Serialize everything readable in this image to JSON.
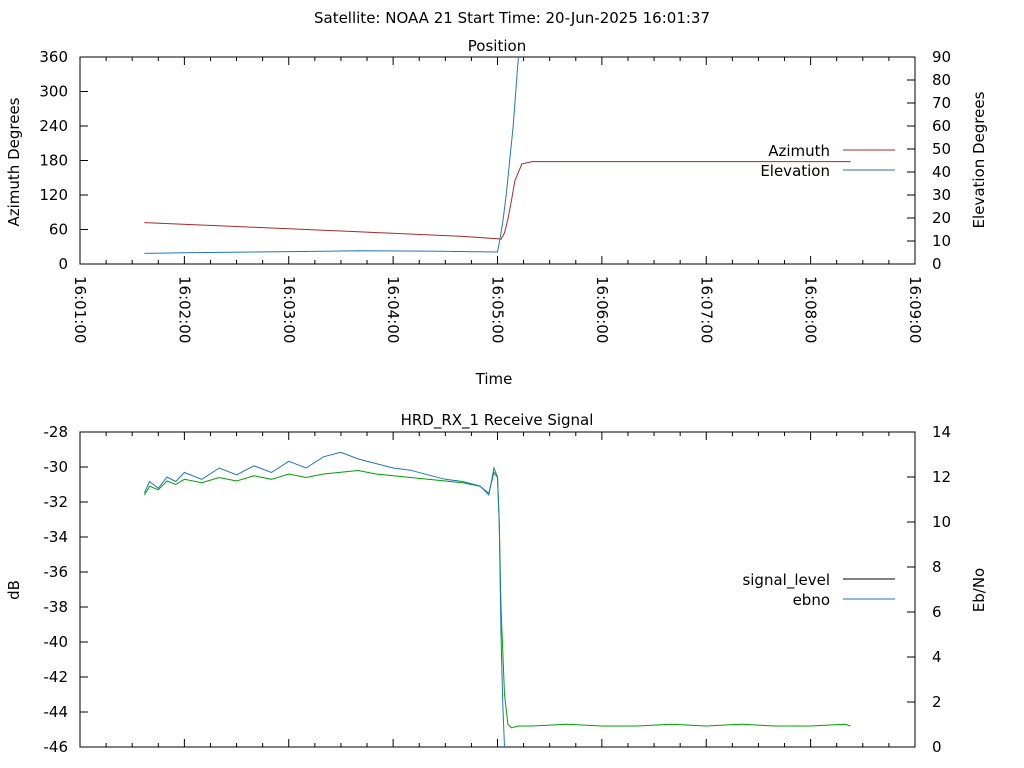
{
  "header": {
    "title": "Satellite: NOAA 21    Start Time: 20-Jun-2025 16:01:37"
  },
  "chart_data": [
    {
      "type": "line",
      "title": "Position",
      "xlabel": "Time",
      "ylabel": "Azimuth Degrees",
      "y2label": "Elevation Degrees",
      "xlim": [
        0,
        480
      ],
      "ylim": [
        0,
        360
      ],
      "y2lim": [
        0,
        90
      ],
      "xticks": [
        0,
        60,
        120,
        180,
        240,
        300,
        360,
        420,
        480
      ],
      "xtick_labels": [
        "16:01:00",
        "16:02:00",
        "16:03:00",
        "16:04:00",
        "16:05:00",
        "16:06:00",
        "16:07:00",
        "16:08:00",
        "16:09:00"
      ],
      "yticks": [
        0,
        60,
        120,
        180,
        240,
        300,
        360
      ],
      "ytick_labels": [
        "0",
        "60",
        "120",
        "180",
        "240",
        "300",
        "360"
      ],
      "y2ticks": [
        0,
        10,
        20,
        30,
        40,
        50,
        60,
        70,
        80,
        90
      ],
      "y2tick_labels": [
        "0",
        "10",
        "20",
        "30",
        "40",
        "50",
        "60",
        "70",
        "80",
        "90"
      ],
      "legend_position": "right",
      "series": [
        {
          "name": "Azimuth",
          "axis": "y",
          "color": "#a52a2a",
          "x": [
            37,
            100,
            160,
            220,
            240,
            242,
            244,
            246,
            248,
            250,
            254,
            260,
            300,
            360,
            420,
            443
          ],
          "y": [
            72,
            64,
            56,
            48,
            44,
            43,
            54,
            78,
            110,
            145,
            174,
            178,
            178,
            178,
            178,
            178
          ]
        },
        {
          "name": "Elevation",
          "axis": "y2",
          "color": "#1f77b4",
          "x": [
            37,
            60,
            100,
            140,
            160,
            200,
            240,
            241,
            243,
            245,
            247,
            249,
            250,
            252
          ],
          "y": [
            4.6,
            4.9,
            5.2,
            5.5,
            5.8,
            5.6,
            5.2,
            9,
            18,
            30,
            45,
            60,
            70,
            90
          ]
        }
      ]
    },
    {
      "type": "line",
      "title": "HRD_RX_1 Receive Signal",
      "xlabel": "",
      "ylabel": "dB",
      "y2label": "Eb/No",
      "xlim": [
        0,
        480
      ],
      "ylim": [
        -46,
        -28
      ],
      "y2lim": [
        0,
        14
      ],
      "yticks": [
        -46,
        -44,
        -42,
        -40,
        -38,
        -36,
        -34,
        -32,
        -30,
        -28
      ],
      "ytick_labels": [
        "-46",
        "-44",
        "-42",
        "-40",
        "-38",
        "-36",
        "-34",
        "-32",
        "-30",
        "-28"
      ],
      "y2ticks": [
        0,
        2,
        4,
        6,
        8,
        10,
        12,
        14
      ],
      "y2tick_labels": [
        "0",
        "2",
        "4",
        "6",
        "8",
        "10",
        "12",
        "14"
      ],
      "legend_position": "right",
      "series": [
        {
          "name": "signal_level",
          "axis": "y",
          "color": "#00a000",
          "x": [
            37,
            40,
            45,
            50,
            55,
            60,
            70,
            80,
            90,
            100,
            110,
            120,
            130,
            140,
            150,
            160,
            170,
            180,
            190,
            200,
            210,
            220,
            230,
            235,
            238,
            240,
            241,
            242,
            244,
            246,
            248,
            252,
            260,
            280,
            300,
            320,
            340,
            360,
            380,
            400,
            420,
            440,
            443
          ],
          "y": [
            -31.6,
            -31.1,
            -31.3,
            -30.8,
            -31.0,
            -30.7,
            -30.9,
            -30.6,
            -30.8,
            -30.5,
            -30.7,
            -30.4,
            -30.6,
            -30.4,
            -30.3,
            -30.2,
            -30.4,
            -30.5,
            -30.6,
            -30.7,
            -30.8,
            -30.9,
            -31.1,
            -31.5,
            -30.3,
            -30.6,
            -33,
            -38,
            -43,
            -44.7,
            -44.9,
            -44.8,
            -44.8,
            -44.7,
            -44.8,
            -44.8,
            -44.7,
            -44.8,
            -44.7,
            -44.8,
            -44.8,
            -44.7,
            -44.8
          ]
        },
        {
          "name": "ebno",
          "axis": "y2",
          "color": "#1f77b4",
          "x": [
            37,
            40,
            45,
            50,
            55,
            60,
            70,
            80,
            90,
            100,
            110,
            120,
            130,
            140,
            150,
            160,
            170,
            180,
            190,
            200,
            210,
            220,
            230,
            235,
            238,
            240,
            241,
            242,
            243,
            244
          ],
          "y": [
            11.3,
            11.8,
            11.5,
            12.0,
            11.8,
            12.2,
            11.9,
            12.4,
            12.1,
            12.5,
            12.2,
            12.7,
            12.4,
            12.9,
            13.1,
            12.8,
            12.6,
            12.4,
            12.3,
            12.1,
            11.9,
            11.8,
            11.6,
            11.2,
            12.4,
            12.0,
            10,
            5,
            2,
            0
          ]
        }
      ]
    }
  ]
}
